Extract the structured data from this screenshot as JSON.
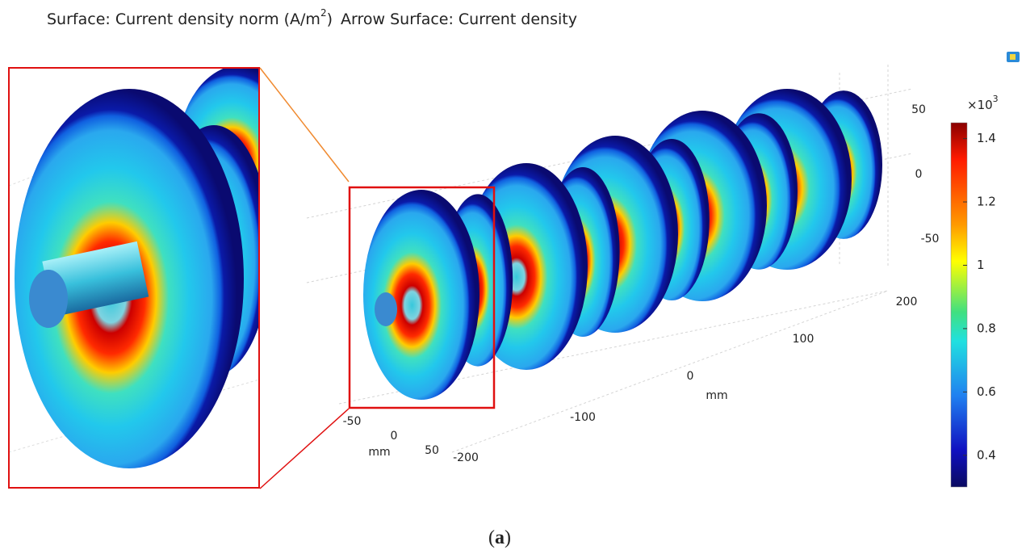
{
  "title": [
    "Surface: Current density norm (A/m",
    "2",
    ")",
    "Arrow Surface: Current density"
  ],
  "axes": {
    "right_ticks": [
      50,
      0,
      -50
    ],
    "depth_ticks": [
      200,
      100,
      0,
      -100,
      -200
    ],
    "depth_unit": "mm",
    "front_ticks": [
      -50,
      0,
      50
    ],
    "front_unit": "mm"
  },
  "colorbar": {
    "multiplier": [
      "×10",
      "3"
    ],
    "range": [
      0.3,
      1.45
    ],
    "ticks": [
      1.4,
      1.2,
      1,
      0.8,
      0.6,
      0.4
    ]
  },
  "caption": [
    "(",
    "a",
    ")"
  ]
}
